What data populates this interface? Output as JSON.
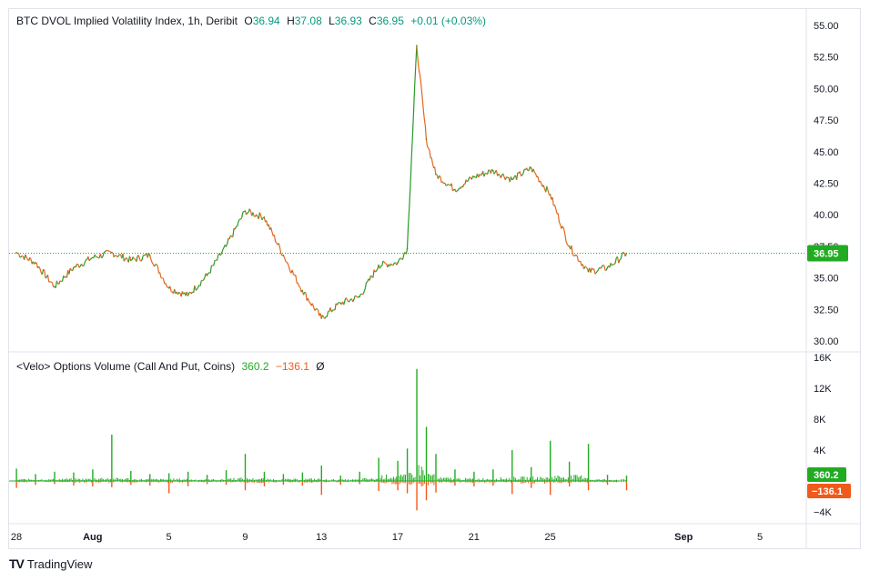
{
  "brand": {
    "logo": "TV",
    "name": "TradingView"
  },
  "main_pane": {
    "legend": {
      "symbol": "BTC DVOL Implied Volatility Index, 1h, Deribit",
      "o_label": "O",
      "o_value": "36.94",
      "h_label": "H",
      "h_value": "37.08",
      "l_label": "L",
      "l_value": "36.93",
      "c_label": "C",
      "c_value": "36.95",
      "change": "+0.01 (+0.03%)"
    },
    "last_price_label": "36.95"
  },
  "volume_pane": {
    "legend": {
      "name": "<Velo> Options Volume (Call And Put, Coins)",
      "call_value": "360.2",
      "put_value": "−136.1",
      "extra": "Ø"
    },
    "call_label": "360.2",
    "put_label": "−136.1"
  },
  "colors": {
    "price_line": "#2a9a2a",
    "price_down": "#e8661c",
    "call": "#22ab22",
    "put": "#f05a1a",
    "last_price_badge": "#22ab22",
    "put_badge": "#f05a1a"
  },
  "chart_data": [
    {
      "type": "line",
      "title": "BTC DVOL Implied Volatility Index, 1h, Deribit",
      "x_ticks": [
        "28",
        "Aug",
        "5",
        "9",
        "13",
        "17",
        "21",
        "25",
        "Sep",
        "5"
      ],
      "y_ticks": [
        "55.00",
        "52.50",
        "50.00",
        "47.50",
        "45.00",
        "42.50",
        "40.00",
        "37.50",
        "35.00",
        "32.50",
        "30.00"
      ],
      "ylim": [
        30.0,
        55.0
      ],
      "last_value": 36.95,
      "series": [
        {
          "x": [
            "Jul 28",
            "Jul 29",
            "Jul 30",
            "Jul 31",
            "Aug 1",
            "Aug 2",
            "Aug 3",
            "Aug 4",
            "Aug 5",
            "Aug 6",
            "Aug 7",
            "Aug 8",
            "Aug 9",
            "Aug 10",
            "Aug 11",
            "Aug 12",
            "Aug 13",
            "Aug 14",
            "Aug 15",
            "Aug 16",
            "Aug 17",
            "Aug 17 12h",
            "Aug 18",
            "Aug 18 12h",
            "Aug 19",
            "Aug 20",
            "Aug 21",
            "Aug 22",
            "Aug 23",
            "Aug 24",
            "Aug 25",
            "Aug 26",
            "Aug 27",
            "Aug 28",
            "Aug 29"
          ],
          "values": [
            37.0,
            36.2,
            34.3,
            35.8,
            36.6,
            37.0,
            36.4,
            36.8,
            34.2,
            33.6,
            35.2,
            37.5,
            40.3,
            39.8,
            36.8,
            34.0,
            31.8,
            33.0,
            33.5,
            36.0,
            36.2,
            37.3,
            53.4,
            46.0,
            43.2,
            42.0,
            43.0,
            43.5,
            42.8,
            43.7,
            41.6,
            37.5,
            35.5,
            35.8,
            36.95
          ]
        }
      ]
    },
    {
      "type": "bar",
      "title": "<Velo> Options Volume (Call And Put, Coins)",
      "y_ticks": [
        "16K",
        "12K",
        "8K",
        "4K",
        "−4K"
      ],
      "ylim": [
        -4000,
        16000
      ],
      "last_call": 360.2,
      "last_put": -136.1,
      "series": [
        {
          "name": "Call",
          "x": [
            "Jul 28",
            "Jul 29",
            "Jul 30",
            "Jul 31",
            "Aug 1",
            "Aug 2",
            "Aug 3",
            "Aug 4",
            "Aug 5",
            "Aug 6",
            "Aug 7",
            "Aug 8",
            "Aug 9",
            "Aug 10",
            "Aug 11",
            "Aug 12",
            "Aug 13",
            "Aug 14",
            "Aug 15",
            "Aug 16",
            "Aug 17",
            "Aug 17 12h",
            "Aug 18",
            "Aug 18 12h",
            "Aug 19",
            "Aug 20",
            "Aug 21",
            "Aug 22",
            "Aug 23",
            "Aug 24",
            "Aug 25",
            "Aug 26",
            "Aug 27",
            "Aug 28",
            "Aug 29"
          ],
          "values": [
            1600,
            900,
            1200,
            1100,
            1500,
            6000,
            1300,
            900,
            1000,
            1200,
            800,
            1400,
            3500,
            1200,
            900,
            1100,
            2000,
            700,
            1200,
            3000,
            2600,
            4200,
            14500,
            7000,
            3500,
            1500,
            1200,
            1500,
            4000,
            1800,
            5200,
            2500,
            4800,
            800,
            700
          ]
        },
        {
          "name": "Put",
          "x": [
            "Jul 28",
            "Jul 29",
            "Jul 30",
            "Jul 31",
            "Aug 1",
            "Aug 2",
            "Aug 3",
            "Aug 4",
            "Aug 5",
            "Aug 6",
            "Aug 7",
            "Aug 8",
            "Aug 9",
            "Aug 10",
            "Aug 11",
            "Aug 12",
            "Aug 13",
            "Aug 14",
            "Aug 15",
            "Aug 16",
            "Aug 17",
            "Aug 17 12h",
            "Aug 18",
            "Aug 18 12h",
            "Aug 19",
            "Aug 20",
            "Aug 21",
            "Aug 22",
            "Aug 23",
            "Aug 24",
            "Aug 25",
            "Aug 26",
            "Aug 27",
            "Aug 28",
            "Aug 29"
          ],
          "values": [
            -900,
            -500,
            -400,
            -600,
            -700,
            -800,
            -500,
            -600,
            -1600,
            -700,
            -400,
            -500,
            -1200,
            -700,
            -500,
            -600,
            -1800,
            -500,
            -400,
            -1300,
            -1200,
            -1600,
            -3800,
            -2500,
            -1500,
            -600,
            -700,
            -600,
            -1700,
            -900,
            -1800,
            -700,
            -1200,
            -500,
            -1200
          ]
        }
      ]
    }
  ]
}
